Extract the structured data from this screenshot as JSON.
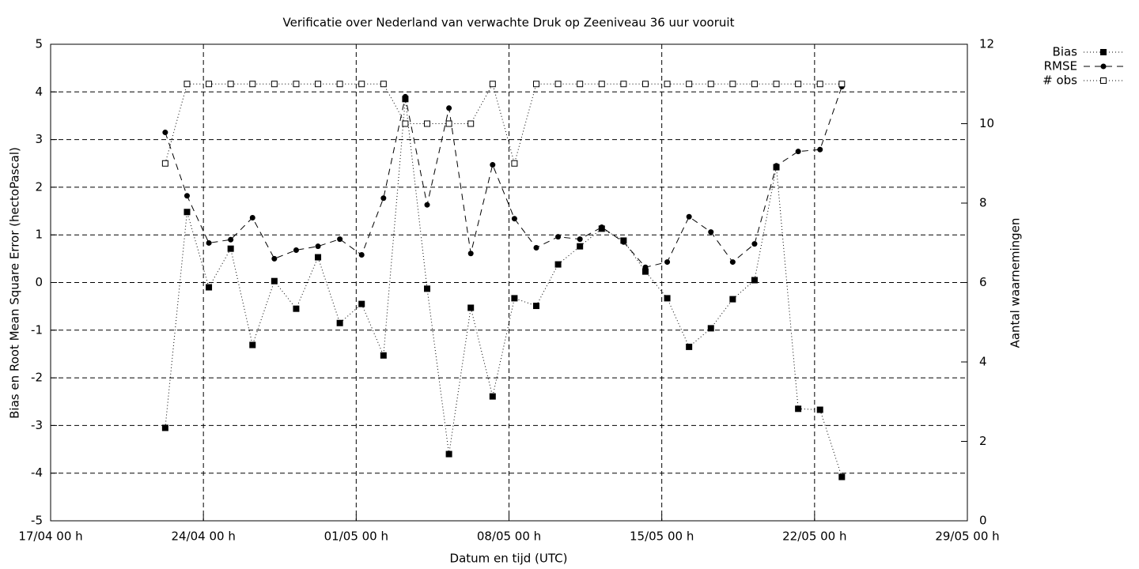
{
  "chart_data": {
    "type": "line",
    "title": "Verificatie over Nederland van verwachte Druk op Zeeniveau 36 uur vooruit",
    "x_label": "Datum en tijd (UTC)",
    "y_label": "Bias en Root Mean Square Error (hectoPascal)",
    "y2_label": "Aantal waarnemingen",
    "x": [
      "22/04 06 h",
      "23/04 06 h",
      "24/04 06 h",
      "25/04 06 h",
      "26/04 06 h",
      "27/04 06 h",
      "28/04 06 h",
      "29/04 06 h",
      "30/04 06 h",
      "01/05 06 h",
      "02/05 06 h",
      "03/05 06 h",
      "04/05 06 h",
      "05/05 06 h",
      "06/05 06 h",
      "07/05 06 h",
      "08/05 06 h",
      "09/05 06 h",
      "10/05 06 h",
      "11/05 06 h",
      "12/05 06 h",
      "13/05 06 h",
      "14/05 06 h",
      "15/05 06 h",
      "16/05 06 h",
      "17/05 06 h",
      "18/05 06 h",
      "19/05 06 h",
      "20/05 06 h",
      "21/05 06 h",
      "22/05 06 h",
      "23/05 06 h"
    ],
    "series": [
      {
        "name": "Bias",
        "color": "#000000",
        "dash": "dotted",
        "marker": "square",
        "values": [
          -3.05,
          1.48,
          -0.1,
          0.71,
          -1.31,
          0.03,
          -0.55,
          0.53,
          -0.85,
          -0.45,
          -1.53,
          3.85,
          -0.13,
          -3.6,
          -0.53,
          -2.39,
          -0.33,
          -0.49,
          0.38,
          0.76,
          1.13,
          0.88,
          0.23,
          -0.33,
          -1.35,
          -0.96,
          -0.35,
          0.05,
          2.42,
          -2.65,
          -2.67,
          -4.08
        ]
      },
      {
        "name": "RMSE",
        "color": "#000000",
        "dash": "dashed",
        "marker": "circle",
        "values": [
          3.15,
          1.82,
          0.83,
          0.9,
          1.36,
          0.5,
          0.68,
          0.76,
          0.91,
          0.58,
          1.77,
          3.9,
          1.63,
          3.66,
          0.61,
          2.47,
          1.34,
          0.73,
          0.96,
          0.91,
          1.16,
          0.85,
          0.32,
          0.43,
          1.38,
          1.06,
          0.43,
          0.81,
          2.45,
          2.75,
          2.79,
          4.11
        ]
      },
      {
        "name": "# obs",
        "color": "#000000",
        "dash": "dotted",
        "marker": "open-square",
        "axis": "y2",
        "values": [
          9,
          11,
          11,
          11,
          11,
          11,
          11,
          11,
          11,
          11,
          11,
          10,
          10,
          10,
          10,
          11,
          9,
          11,
          11,
          11,
          11,
          11,
          11,
          11,
          11,
          11,
          11,
          11,
          11,
          11,
          11,
          11
        ]
      }
    ],
    "xlim": [
      "17/04 00 h",
      "29/05 00 h"
    ],
    "xticks": [
      "17/04 00 h",
      "24/04 00 h",
      "01/05 00 h",
      "08/05 00 h",
      "15/05 00 h",
      "22/05 00 h",
      "29/05 00 h"
    ],
    "ylim": [
      -5,
      5
    ],
    "yticks": [
      -5,
      -4,
      -3,
      -2,
      -1,
      0,
      1,
      2,
      3,
      4,
      5
    ],
    "y2lim": [
      0,
      12
    ],
    "y2ticks": [
      0,
      2,
      4,
      6,
      8,
      10,
      12
    ],
    "grid": true,
    "legend": "top-right-outside"
  }
}
